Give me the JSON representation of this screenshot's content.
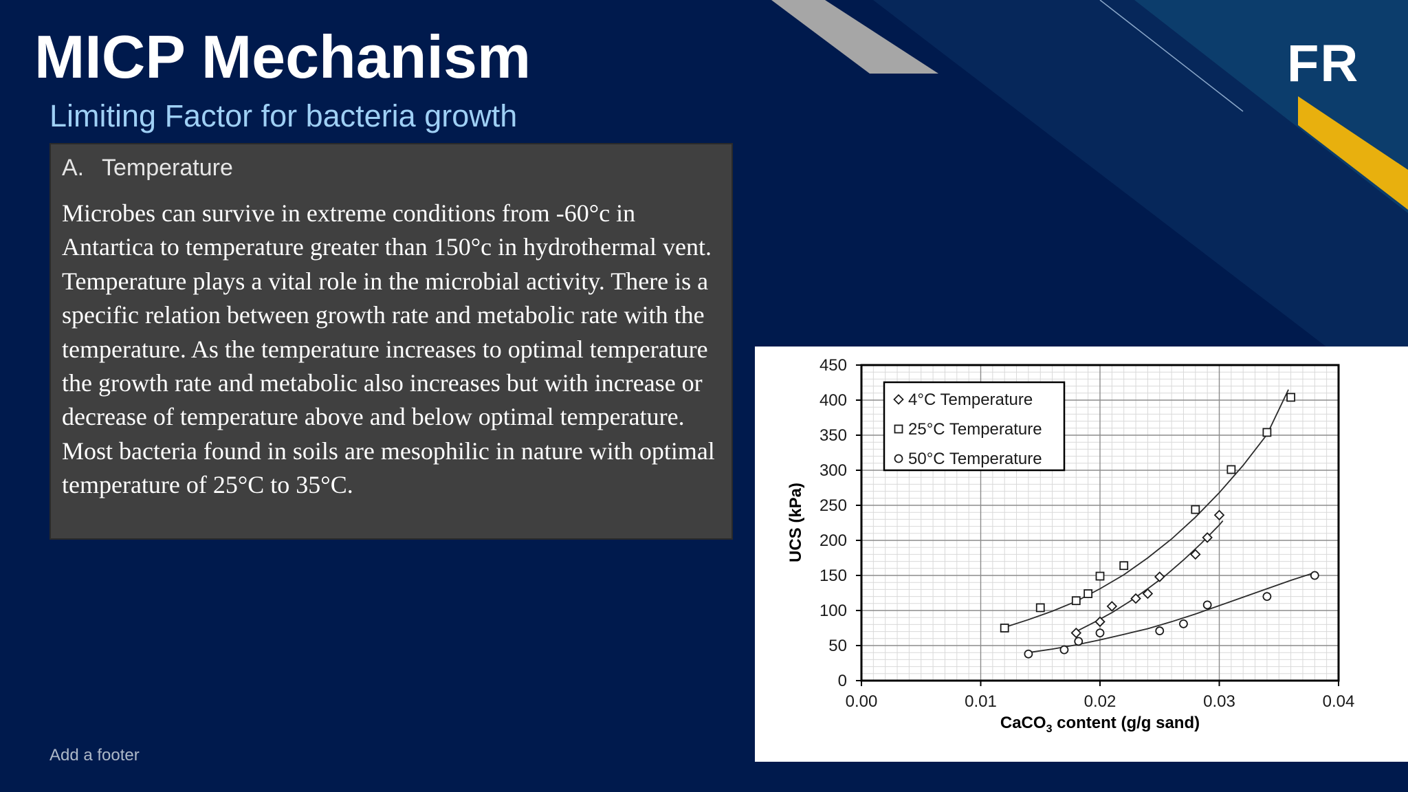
{
  "slide": {
    "title": "MICP Mechanism",
    "subtitle": "Limiting Factor for bacteria growth",
    "logo": "FR",
    "footer": "Add a footer",
    "section_marker": "A.",
    "section_heading": "Temperature",
    "body": "Microbes can survive in extreme conditions from -60°c in Antartica to temperature greater than 150°c in hydrothermal vent. Temperature plays a vital role in the microbial activity. There is a specific relation between growth rate and metabolic rate with the temperature. As the temperature increases to optimal temperature the growth rate and metabolic also increases but with increase or decrease of temperature above and below optimal temperature. Most bacteria found in soils are mesophilic in nature with optimal temperature of 25°C to 35°C."
  },
  "colors": {
    "background": "#001a4d",
    "panel": "#404040",
    "subtitle": "#9fd0f5",
    "accent_gold": "#e8b00e",
    "accent_teal": "#0c3d6c",
    "accent_gray": "#a6a6a6"
  },
  "chart_data": {
    "type": "scatter",
    "title": "",
    "xlabel_main": "CaCO",
    "xlabel_sub": "3",
    "xlabel_rest": " content (g/g sand)",
    "ylabel": "UCS (kPa)",
    "xlim": [
      0,
      0.04
    ],
    "ylim": [
      0,
      450
    ],
    "xticks": [
      0,
      0.01,
      0.02,
      0.03,
      0.04
    ],
    "xtick_labels": [
      "0.00",
      "0.01",
      "0.02",
      "0.03",
      "0.04"
    ],
    "yticks": [
      0,
      50,
      100,
      150,
      200,
      250,
      300,
      350,
      400,
      450
    ],
    "ytick_labels": [
      "0",
      "50",
      "100",
      "150",
      "200",
      "250",
      "300",
      "350",
      "400",
      "450"
    ],
    "grid": true,
    "legend_position": "top-left",
    "series": [
      {
        "name": "4°C Temperature",
        "marker": "diamond",
        "points": [
          [
            0.018,
            68
          ],
          [
            0.02,
            84
          ],
          [
            0.021,
            106
          ],
          [
            0.023,
            117
          ],
          [
            0.024,
            124
          ],
          [
            0.025,
            148
          ],
          [
            0.028,
            180
          ],
          [
            0.029,
            204
          ],
          [
            0.03,
            236
          ]
        ],
        "fit": [
          [
            0.018,
            70
          ],
          [
            0.0195,
            83
          ],
          [
            0.021,
            97
          ],
          [
            0.0225,
            113
          ],
          [
            0.024,
            131
          ],
          [
            0.0255,
            150
          ],
          [
            0.027,
            172
          ],
          [
            0.0285,
            196
          ],
          [
            0.03,
            222
          ],
          [
            0.0303,
            228
          ]
        ]
      },
      {
        "name": "25°C Temperature",
        "marker": "square",
        "points": [
          [
            0.012,
            75
          ],
          [
            0.015,
            104
          ],
          [
            0.018,
            114
          ],
          [
            0.019,
            124
          ],
          [
            0.02,
            149
          ],
          [
            0.022,
            164
          ],
          [
            0.028,
            244
          ],
          [
            0.031,
            301
          ],
          [
            0.034,
            354
          ],
          [
            0.036,
            404
          ]
        ],
        "fit": [
          [
            0.012,
            76
          ],
          [
            0.014,
            87
          ],
          [
            0.016,
            99
          ],
          [
            0.018,
            113
          ],
          [
            0.02,
            131
          ],
          [
            0.022,
            151
          ],
          [
            0.024,
            175
          ],
          [
            0.026,
            202
          ],
          [
            0.028,
            233
          ],
          [
            0.03,
            268
          ],
          [
            0.032,
            307
          ],
          [
            0.034,
            351
          ],
          [
            0.0358,
            415
          ]
        ]
      },
      {
        "name": "50°C Temperature",
        "marker": "circle",
        "points": [
          [
            0.014,
            38
          ],
          [
            0.017,
            44
          ],
          [
            0.0182,
            56
          ],
          [
            0.02,
            68
          ],
          [
            0.025,
            71
          ],
          [
            0.027,
            81
          ],
          [
            0.029,
            108
          ],
          [
            0.034,
            120
          ],
          [
            0.038,
            150
          ]
        ],
        "fit": [
          [
            0.014,
            40
          ],
          [
            0.016,
            45
          ],
          [
            0.018,
            51
          ],
          [
            0.02,
            58
          ],
          [
            0.022,
            66
          ],
          [
            0.024,
            74
          ],
          [
            0.026,
            84
          ],
          [
            0.028,
            95
          ],
          [
            0.03,
            107
          ],
          [
            0.032,
            119
          ],
          [
            0.034,
            131
          ],
          [
            0.036,
            143
          ],
          [
            0.038,
            154
          ]
        ]
      }
    ]
  }
}
